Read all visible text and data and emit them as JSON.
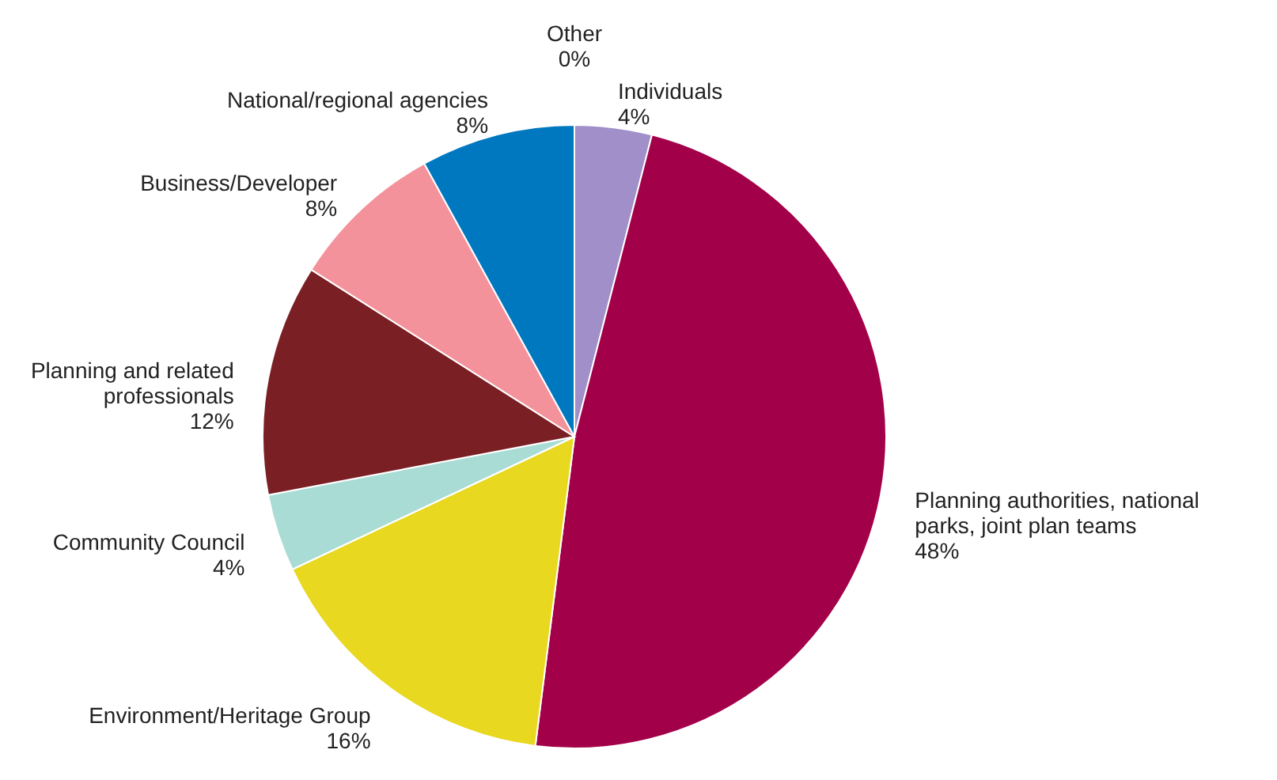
{
  "chart_data": {
    "type": "pie",
    "categories": [
      "Other",
      "Individuals",
      "Planning authorities, national parks, joint plan teams",
      "Environment/Heritage Group",
      "Community Council",
      "Planning and related professionals",
      "Business/Developer",
      "National/regional agencies"
    ],
    "values": [
      0,
      4,
      48,
      16,
      4,
      12,
      8,
      8
    ],
    "value_labels": [
      "0%",
      "4%",
      "48%",
      "16%",
      "4%",
      "12%",
      "8%",
      "8%"
    ],
    "colors": [
      "#888888",
      "#a08fc8",
      "#a3004a",
      "#e8d820",
      "#a8dcd4",
      "#7a2024",
      "#f4929c",
      "#0078c0"
    ]
  }
}
